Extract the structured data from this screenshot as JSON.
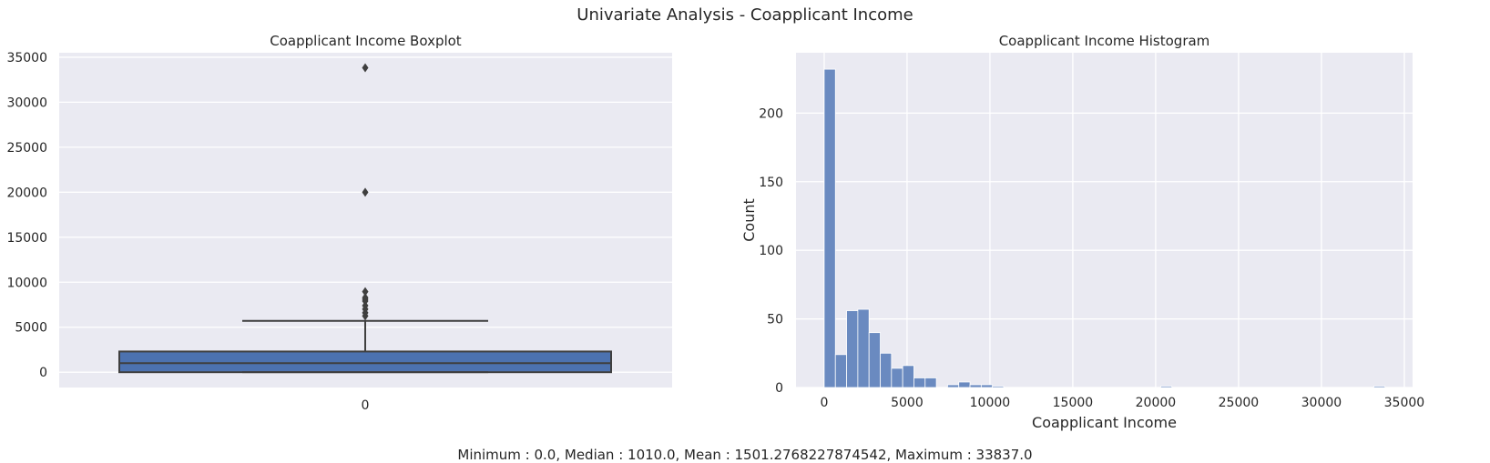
{
  "suptitle": "Univariate Analysis - Coapplicant Income",
  "caption": "Minimum : 0.0, Median : 1010.0, Mean : 1501.2768227874542, Maximum : 33837.0",
  "colors": {
    "background": "#eaeaf2",
    "grid": "#ffffff",
    "box_fill": "#4c72b0",
    "hist_fill": "#6a8ac0",
    "line": "#3f3f3f"
  },
  "chart_data": [
    {
      "type": "box",
      "title": "Coapplicant Income Boxplot",
      "xlabel": "",
      "ylabel": "",
      "categories": [
        "0"
      ],
      "ylim": [
        -1700,
        35500
      ],
      "yticks": [
        0,
        5000,
        10000,
        15000,
        20000,
        25000,
        30000,
        35000
      ],
      "grid": true,
      "stats": {
        "min": 0,
        "q1": 0,
        "median": 1010,
        "q3": 2300,
        "whisker_high": 5700
      },
      "outliers": [
        6250,
        6600,
        7000,
        7400,
        7900,
        8100,
        8300,
        8950,
        20000,
        33837
      ]
    },
    {
      "type": "histogram",
      "title": "Coapplicant Income Histogram",
      "xlabel": "Coapplicant Income",
      "ylabel": "Count",
      "xlim": [
        -1700,
        35500
      ],
      "ylim": [
        0,
        244
      ],
      "xticks": [
        0,
        5000,
        10000,
        15000,
        20000,
        25000,
        30000,
        35000
      ],
      "yticks": [
        0,
        50,
        100,
        150,
        200
      ],
      "grid": true,
      "bin_width": 676.74,
      "counts": [
        232,
        24,
        56,
        57,
        40,
        25,
        14,
        16,
        7,
        7,
        0,
        2,
        4,
        2,
        2,
        1,
        0,
        0,
        0,
        0,
        0,
        0,
        0,
        0,
        0,
        0,
        0,
        0,
        0,
        0,
        1,
        0,
        0,
        0,
        0,
        0,
        0,
        0,
        0,
        0,
        0,
        0,
        0,
        0,
        0,
        0,
        0,
        0,
        0,
        1
      ]
    }
  ]
}
